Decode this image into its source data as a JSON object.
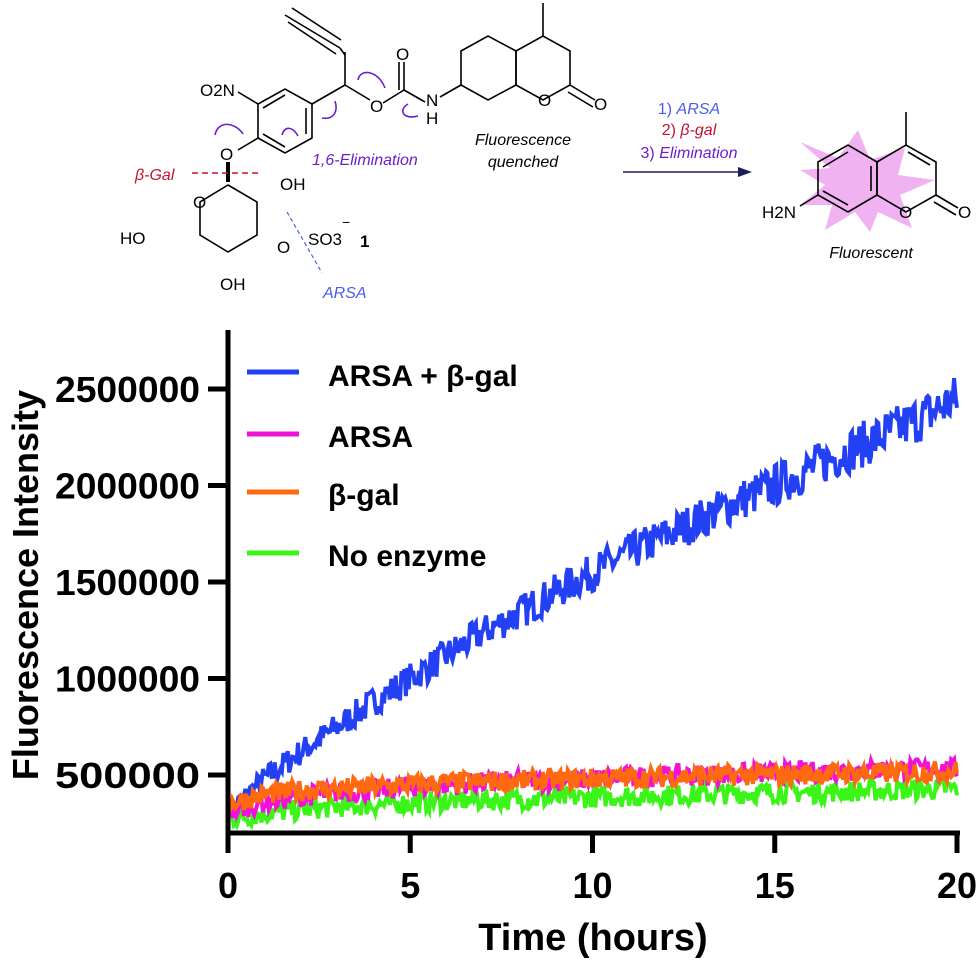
{
  "scheme": {
    "compound_label": "1",
    "substituents": {
      "nitro": "O2N",
      "sulfate": "SO3",
      "sulfate_charge": "−",
      "hydroxyls": [
        "HO",
        "OH",
        "OH"
      ],
      "carbamate_nh": "N",
      "carbamate_h": "H",
      "amine": "H2N"
    },
    "annotations": {
      "beta_gal_cleavage": "β-Gal",
      "arsa_cleavage": "ARSA",
      "elimination": "1,6-Elimination",
      "quenched_line1": "Fluorescence",
      "quenched_line2": "quenched",
      "product_label": "Fluorescent"
    },
    "reaction_steps": [
      {
        "text": "1) ARSA",
        "num": "1) ",
        "name": "ARSA",
        "color": "#4a5cf0"
      },
      {
        "text": "2) β-gal",
        "num": "2) ",
        "name": "β-gal",
        "color": "#c8102e"
      },
      {
        "text": "3) Elimination",
        "num": "3) ",
        "name": "Elimination",
        "color": "#6a1fd0"
      }
    ],
    "colors": {
      "beta_gal": "#c8102e",
      "arsa": "#4a5cf0",
      "elimination": "#6a1fd0",
      "fluorescent_glow": "#eeaaee"
    }
  },
  "chart_data": {
    "type": "line",
    "title": "",
    "xlabel": "Time (hours)",
    "ylabel": "Fluorescence Intensity",
    "xlim": [
      0,
      20
    ],
    "ylim": [
      300000,
      2700000
    ],
    "x_ticks": [
      0,
      5,
      10,
      15,
      20
    ],
    "y_ticks": [
      500000,
      1000000,
      1500000,
      2000000,
      2500000
    ],
    "y_tick_labels": [
      "500000",
      "1000000",
      "1500000",
      "2000000",
      "2500000"
    ],
    "grid": false,
    "legend_position": "upper-left",
    "x": [
      0,
      1,
      2,
      3,
      4,
      5,
      6,
      7,
      8,
      9,
      10,
      11,
      12,
      13,
      14,
      15,
      16,
      17,
      18,
      19,
      20
    ],
    "series": [
      {
        "name": "ARSA + β-gal",
        "color": "#2340f5",
        "values": [
          300000,
          480000,
          620000,
          750000,
          880000,
          1000000,
          1120000,
          1240000,
          1340000,
          1450000,
          1550000,
          1650000,
          1740000,
          1830000,
          1920000,
          2000000,
          2090000,
          2180000,
          2260000,
          2350000,
          2450000
        ]
      },
      {
        "name": "ARSA",
        "color": "#f012d8",
        "values": [
          310000,
          360000,
          390000,
          410000,
          420000,
          440000,
          450000,
          460000,
          470000,
          470000,
          480000,
          490000,
          495000,
          500000,
          505000,
          510000,
          515000,
          525000,
          530000,
          530000,
          530000
        ]
      },
      {
        "name": "β-gal",
        "color": "#ff6a10",
        "values": [
          350000,
          400000,
          420000,
          430000,
          440000,
          450000,
          460000,
          465000,
          470000,
          475000,
          480000,
          485000,
          490000,
          495000,
          500000,
          500000,
          505000,
          510000,
          510000,
          515000,
          520000
        ]
      },
      {
        "name": "No enzyme",
        "color": "#3cf518",
        "values": [
          270000,
          300000,
          320000,
          335000,
          345000,
          355000,
          365000,
          370000,
          375000,
          380000,
          385000,
          390000,
          395000,
          400000,
          405000,
          410000,
          410000,
          415000,
          420000,
          425000,
          430000
        ]
      }
    ]
  }
}
